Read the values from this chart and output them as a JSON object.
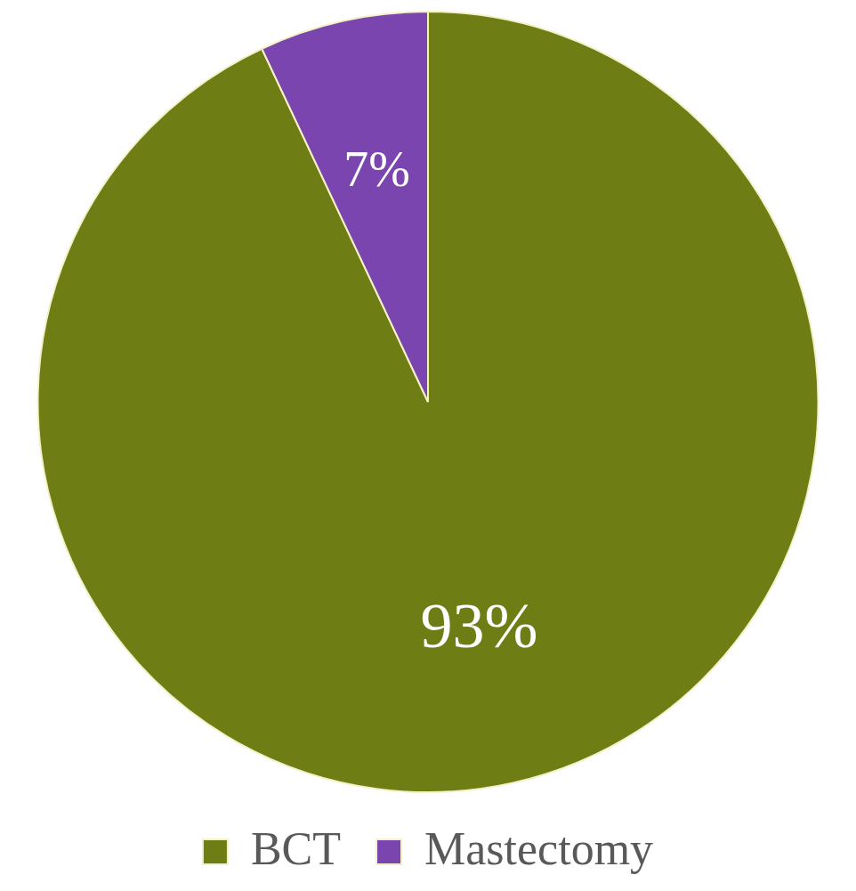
{
  "chart_data": {
    "type": "pie",
    "categories": [
      "BCT",
      "Mastectomy"
    ],
    "values": [
      93,
      7
    ],
    "colors": [
      "#6e7d14",
      "#7b45b0"
    ],
    "value_labels": [
      "93%",
      "7%"
    ],
    "legend": "bottom"
  }
}
